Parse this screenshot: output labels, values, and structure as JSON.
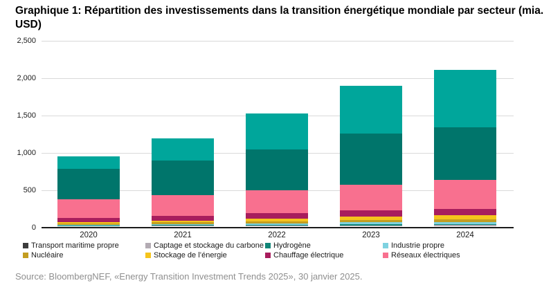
{
  "title": "Graphique 1: Répartition des investissements dans la transition énergétique mondiale par secteur (mia. USD)",
  "source": "Source: BloombergNEF, «Energy Transition Investment Trends 2025», 30 janvier 2025.",
  "colors": {
    "background": "#ffffff",
    "title_text": "#000000",
    "axis_line": "#1a1a1a",
    "gridline": "#d9d9d9",
    "tick_text": "#1a1a1a",
    "source_text": "#8f8f8f"
  },
  "chart_data": {
    "type": "bar",
    "stacked": true,
    "unit": "mia. USD",
    "grid": true,
    "legend_position": "bottom",
    "categories": [
      "2020",
      "2021",
      "2022",
      "2023",
      "2024"
    ],
    "y_axis": {
      "min": 0,
      "max": 2500,
      "tick_interval": 500,
      "tick_labels": [
        "0",
        "500",
        "1,000",
        "1,500",
        "2,000",
        "2,500"
      ]
    },
    "series": [
      {
        "name": "Transport maritime propre",
        "color": "#3c3c3c",
        "in_legend": true,
        "values": [
          1,
          2,
          2,
          3,
          4
        ]
      },
      {
        "name": "Captage et stockage du carbone",
        "color": "#b3abb3",
        "in_legend": true,
        "values": [
          3,
          5,
          7,
          10,
          11
        ]
      },
      {
        "name": "Hydrogène",
        "color": "#108577",
        "in_legend": true,
        "values": [
          5,
          7,
          9,
          12,
          13
        ]
      },
      {
        "name": "Industrie propre",
        "color": "#7ed2e0",
        "in_legend": true,
        "values": [
          10,
          14,
          20,
          26,
          31
        ]
      },
      {
        "name": "Nucléaire",
        "color": "#c39d20",
        "in_legend": true,
        "values": [
          20,
          24,
          28,
          32,
          36
        ]
      },
      {
        "name": "Stockage de l’énergie",
        "color": "#f5c41c",
        "in_legend": true,
        "values": [
          17,
          26,
          36,
          46,
          54
        ]
      },
      {
        "name": "Chauffage électrique",
        "color": "#a81d5d",
        "in_legend": true,
        "values": [
          55,
          60,
          70,
          85,
          85
        ]
      },
      {
        "name": "Réseaux électriques",
        "color": "#f8708f",
        "in_legend": true,
        "values": [
          250,
          275,
          310,
          345,
          385
        ]
      },
      {
        "name": "",
        "note": "segment teal foncé — entrée de légende non visible dans la capture",
        "color": "#00756b",
        "in_legend": false,
        "values": [
          410,
          465,
          550,
          685,
          705
        ]
      },
      {
        "name": "",
        "note": "segment turquoise — entrée de légende non visible dans la capture",
        "color": "#00a69b",
        "in_legend": false,
        "values": [
          165,
          300,
          480,
          635,
          765
        ]
      }
    ],
    "totals": [
      936,
      1178,
      1512,
      1879,
      2089
    ],
    "legend": [
      {
        "label": "Transport maritime propre",
        "color": "#3c3c3c"
      },
      {
        "label": "Captage et stockage du carbone",
        "color": "#b3abb3"
      },
      {
        "label": "Hydrogène",
        "color": "#108577"
      },
      {
        "label": "Industrie propre",
        "color": "#7ed2e0"
      },
      {
        "label": "Nucléaire",
        "color": "#c39d20"
      },
      {
        "label": "Stockage de l’énergie",
        "color": "#f5c41c"
      },
      {
        "label": "Chauffage électrique",
        "color": "#a81d5d"
      },
      {
        "label": "Réseaux électriques",
        "color": "#f8708f"
      }
    ]
  }
}
